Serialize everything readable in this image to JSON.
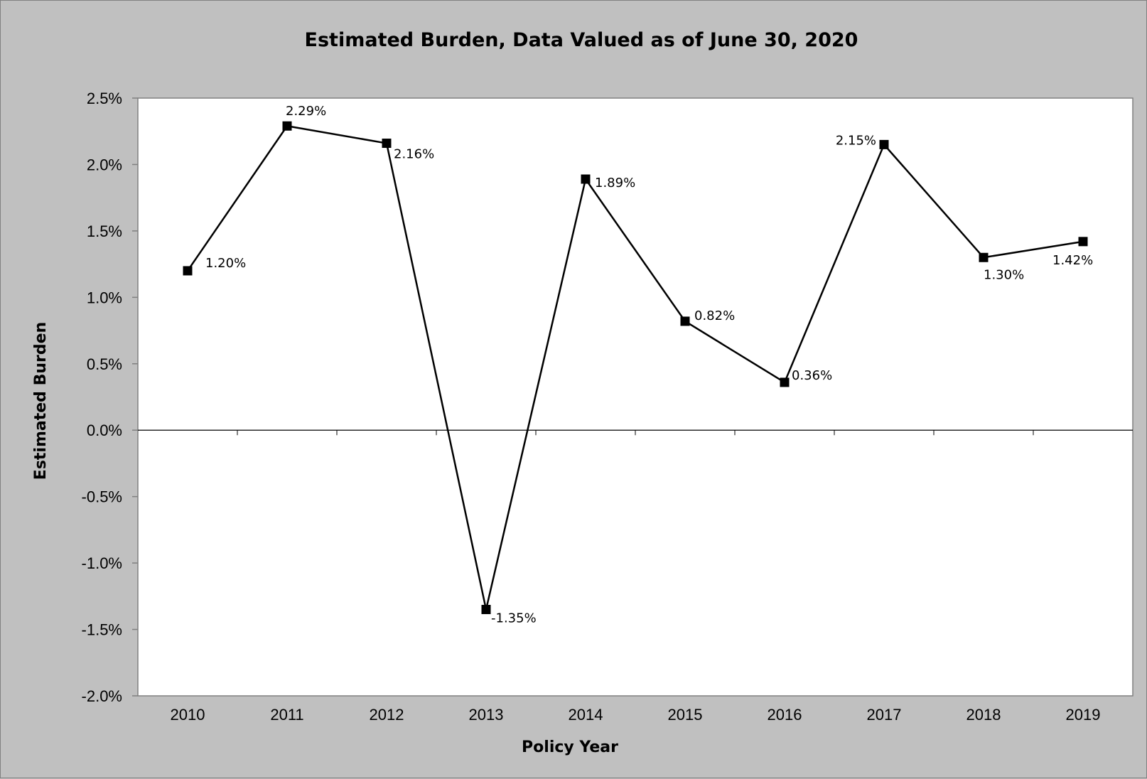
{
  "chart_data": {
    "type": "line",
    "title": "Estimated Burden, Data Valued as of June 30, 2020",
    "xlabel": "Policy Year",
    "ylabel": "Estimated Burden",
    "categories": [
      "2010",
      "2011",
      "2012",
      "2013",
      "2014",
      "2015",
      "2016",
      "2017",
      "2018",
      "2019"
    ],
    "series": [
      {
        "values": [
          1.2,
          2.29,
          2.16,
          -1.35,
          1.89,
          0.82,
          0.36,
          2.15,
          1.3,
          1.42
        ],
        "data_labels": [
          "1.20%",
          "2.29%",
          "2.16%",
          "-1.35%",
          "1.89%",
          "0.82%",
          "0.36%",
          "2.15%",
          "1.30%",
          "1.42%"
        ],
        "color": "#000000",
        "marker": "square"
      }
    ],
    "ylim": [
      -2.0,
      2.5
    ],
    "yticks": [
      2.5,
      2.0,
      1.5,
      1.0,
      0.5,
      0.0,
      -0.5,
      -1.0,
      -1.5,
      -2.0
    ],
    "ytick_labels": [
      "2.5%",
      "2.0%",
      "1.5%",
      "1.0%",
      "0.5%",
      "0.0%",
      "-0.5%",
      "-1.0%",
      "-1.5%",
      "-2.0%"
    ],
    "grid": false,
    "legend": "none",
    "colors": {
      "frame_background": "#c0c0c0",
      "plot_background": "#ffffff",
      "line": "#000000"
    }
  }
}
